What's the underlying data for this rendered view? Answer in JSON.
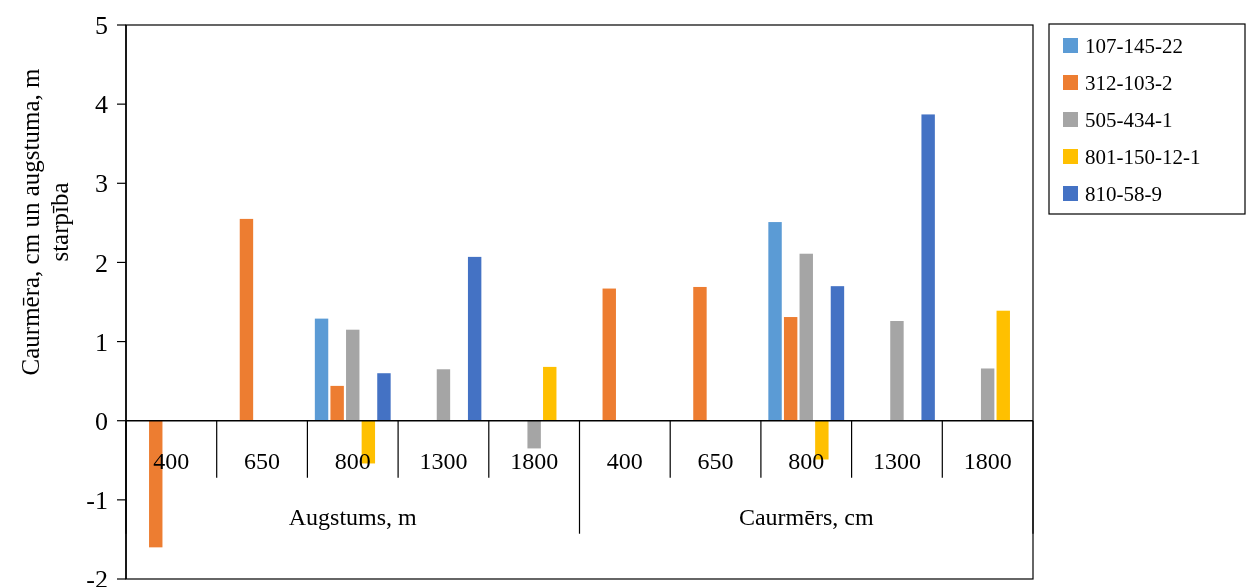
{
  "chart_data": {
    "type": "bar",
    "ylabel": "Caurmēra, cm un augstuma, m starpība",
    "categories": [
      "400",
      "650",
      "800",
      "1300",
      "1800",
      "400",
      "650",
      "800",
      "1300",
      "1800"
    ],
    "annotations": [
      "Augstums, m",
      "Caurmērs, cm"
    ],
    "series": [
      {
        "name": "107-145-22",
        "color": "#5b9bd5",
        "values": [
          null,
          null,
          1.29,
          null,
          null,
          null,
          null,
          2.51,
          null,
          null
        ]
      },
      {
        "name": "312-103-2",
        "color": "#ed7d31",
        "values": [
          -1.6,
          2.55,
          0.44,
          null,
          null,
          1.67,
          1.69,
          1.31,
          null,
          null
        ]
      },
      {
        "name": "505-434-1",
        "color": "#a5a5a5",
        "values": [
          null,
          null,
          1.15,
          0.65,
          -0.35,
          null,
          null,
          2.11,
          1.26,
          0.66
        ]
      },
      {
        "name": "801-150-12-1",
        "color": "#ffc000",
        "values": [
          null,
          null,
          -0.54,
          null,
          0.68,
          null,
          null,
          -0.49,
          null,
          1.39
        ]
      },
      {
        "name": "810-58-9",
        "color": "#4472c4",
        "values": [
          null,
          null,
          0.6,
          2.07,
          null,
          null,
          null,
          1.7,
          3.87,
          null
        ]
      }
    ],
    "ylim": [
      -2,
      5
    ],
    "yticks": [
      -2,
      -1,
      0,
      1,
      2,
      3,
      4,
      5
    ],
    "grid": false,
    "legend": "right"
  }
}
